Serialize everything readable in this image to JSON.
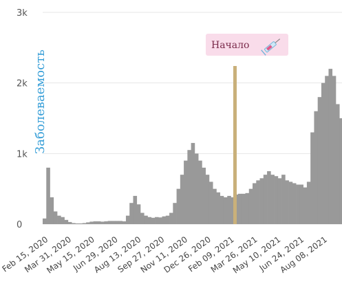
{
  "chart_data": {
    "type": "bar",
    "ylabel": "Заболеваемость",
    "ylim": [
      0,
      3000
    ],
    "y_ticks": [
      {
        "value": 0,
        "label": "0"
      },
      {
        "value": 1000,
        "label": "1k"
      },
      {
        "value": 2000,
        "label": "2k"
      },
      {
        "value": 3000,
        "label": "3k"
      }
    ],
    "x_ticks": [
      {
        "date": "2020-02-15",
        "label": "Feb 15, 2020"
      },
      {
        "date": "2020-03-31",
        "label": "Mar 31, 2020"
      },
      {
        "date": "2020-05-15",
        "label": "May 15, 2020"
      },
      {
        "date": "2020-06-29",
        "label": "Jun 29, 2020"
      },
      {
        "date": "2020-08-13",
        "label": "Aug 13, 2020"
      },
      {
        "date": "2020-09-27",
        "label": "Sep 27, 2020"
      },
      {
        "date": "2020-11-11",
        "label": "Nov 11, 2020"
      },
      {
        "date": "2020-12-26",
        "label": "Dec 26, 2020"
      },
      {
        "date": "2021-02-09",
        "label": "Feb 09, 2021"
      },
      {
        "date": "2021-03-26",
        "label": "Mar 26, 2021"
      },
      {
        "date": "2021-05-10",
        "label": "May 10, 2021"
      },
      {
        "date": "2021-06-24",
        "label": "Jun 24, 2021"
      },
      {
        "date": "2021-08-08",
        "label": "Aug 08, 2021"
      }
    ],
    "annotation": {
      "label": "Начало",
      "date": "2021-02-15",
      "icon": "syringe-icon"
    },
    "grid": true,
    "bar_color": "#999999",
    "marker_color": "#c9b07a",
    "ylabel_color": "#3aa0d8",
    "series": [
      {
        "x": [
          "2020-02-09",
          "2020-02-16",
          "2020-02-23",
          "2020-03-01",
          "2020-03-08",
          "2020-03-15",
          "2020-03-22",
          "2020-03-29",
          "2020-04-05",
          "2020-04-12",
          "2020-04-19",
          "2020-04-26",
          "2020-05-03",
          "2020-05-10",
          "2020-05-17",
          "2020-05-24",
          "2020-05-31",
          "2020-06-07",
          "2020-06-14",
          "2020-06-21",
          "2020-06-28",
          "2020-07-05",
          "2020-07-12",
          "2020-07-19",
          "2020-07-26",
          "2020-08-02",
          "2020-08-09",
          "2020-08-16",
          "2020-08-23",
          "2020-08-30",
          "2020-09-06",
          "2020-09-13",
          "2020-09-20",
          "2020-09-27",
          "2020-10-04",
          "2020-10-11",
          "2020-10-18",
          "2020-10-25",
          "2020-11-01",
          "2020-11-08",
          "2020-11-15",
          "2020-11-22",
          "2020-11-29",
          "2020-12-06",
          "2020-12-13",
          "2020-12-20",
          "2020-12-27",
          "2021-01-03",
          "2021-01-10",
          "2021-01-17",
          "2021-01-24",
          "2021-01-31",
          "2021-02-07",
          "2021-02-14",
          "2021-02-21",
          "2021-02-28",
          "2021-03-07",
          "2021-03-14",
          "2021-03-21",
          "2021-03-28",
          "2021-04-04",
          "2021-04-11",
          "2021-04-18",
          "2021-04-25",
          "2021-05-02",
          "2021-05-09",
          "2021-05-16",
          "2021-05-23",
          "2021-05-30",
          "2021-06-06",
          "2021-06-13",
          "2021-06-20",
          "2021-06-27",
          "2021-07-04",
          "2021-07-11",
          "2021-07-18",
          "2021-07-25",
          "2021-08-01",
          "2021-08-08",
          "2021-08-15",
          "2021-08-22",
          "2021-08-29",
          "2021-09-05"
        ],
        "values": [
          80,
          800,
          380,
          180,
          120,
          100,
          60,
          30,
          15,
          10,
          10,
          15,
          25,
          35,
          40,
          40,
          35,
          40,
          45,
          45,
          45,
          45,
          40,
          120,
          300,
          400,
          280,
          160,
          120,
          100,
          90,
          100,
          95,
          110,
          120,
          160,
          300,
          500,
          700,
          900,
          1050,
          1150,
          1000,
          900,
          800,
          700,
          600,
          500,
          450,
          400,
          380,
          400,
          380,
          420,
          430,
          430,
          440,
          500,
          580,
          620,
          650,
          700,
          750,
          700,
          680,
          650,
          700,
          620,
          600,
          580,
          560,
          560,
          520,
          600,
          1300,
          1600,
          1800,
          2000,
          2100,
          2200,
          2100,
          1700,
          1500
        ]
      }
    ]
  }
}
